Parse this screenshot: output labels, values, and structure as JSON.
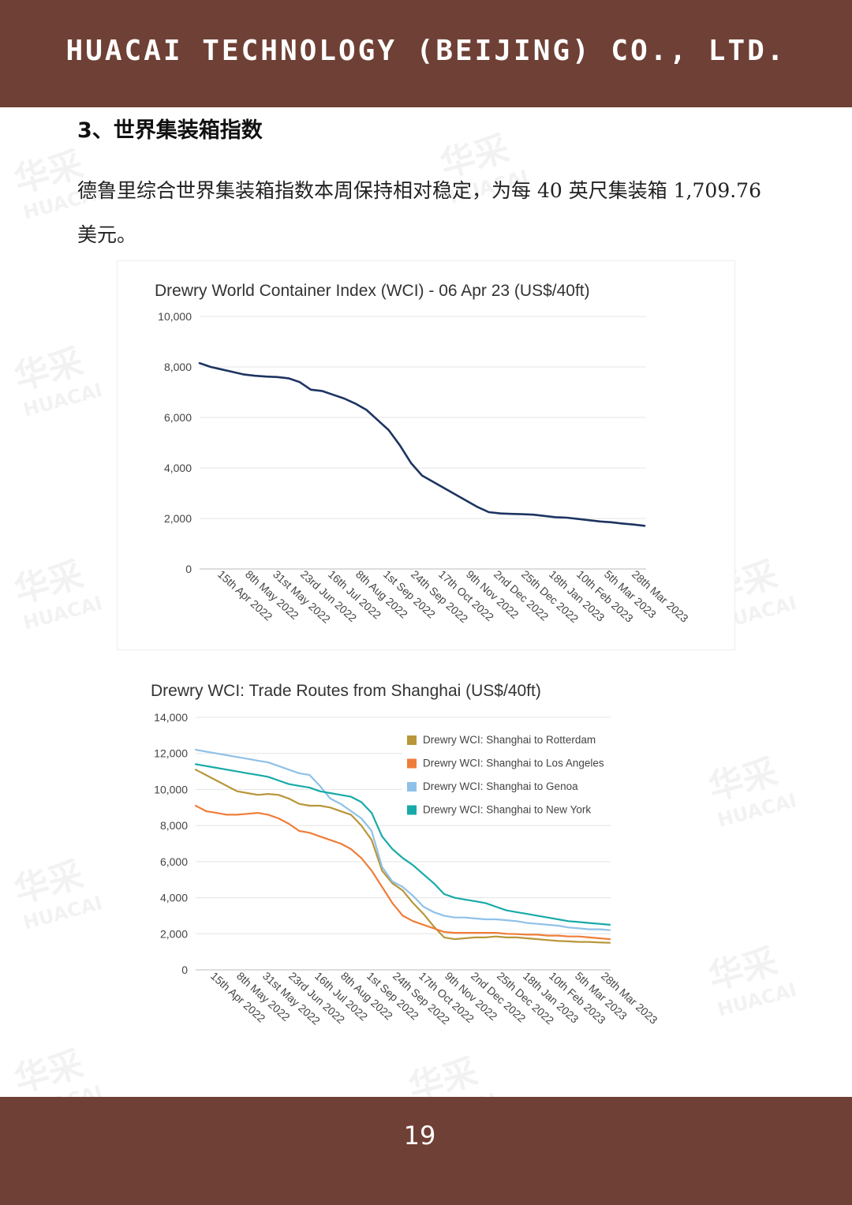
{
  "header": {
    "title": "HUACAI TECHNOLOGY (BEIJING) CO., LTD."
  },
  "section": {
    "heading": "3、世界集装箱指数",
    "paragraph": "德鲁里综合世界集装箱指数本周保持相对稳定，为每 40 英尺集装箱 1,709.76 美元。"
  },
  "watermark": {
    "text": "华采",
    "subtext": "HUACAI"
  },
  "footer": {
    "page_number": "19"
  },
  "colors": {
    "wci": "#1d3461",
    "rotterdam": "#b8963a",
    "los_angeles": "#ef7d3a",
    "genoa": "#8fc1e8",
    "new_york": "#17aaa8",
    "grid": "#e4e4e4",
    "header_bg": "#6f4035"
  },
  "chart_data": [
    {
      "type": "line",
      "title": "Drewry World Container Index (WCI) - 06 Apr 23 (US$/40ft)",
      "ylim": [
        0,
        10000
      ],
      "yticks": [
        "0",
        "2,000",
        "4,000",
        "6,000",
        "8,000",
        "10,000"
      ],
      "ytick_values": [
        0,
        2000,
        4000,
        6000,
        8000,
        10000
      ],
      "xticks": [
        "15th Apr 2022",
        "8th May 2022",
        "31st May 2022",
        "23rd Jun 2022",
        "16th Jul 2022",
        "8th Aug 2022",
        "1st Sep 2022",
        "24th Sep 2022",
        "17th Oct 2022",
        "9th Nov 2022",
        "2nd Dec 2022",
        "25th Dec 2022",
        "18th Jan 2023",
        "10th Feb 2023",
        "5th Mar 2023",
        "28th Mar 2023"
      ],
      "grid": true,
      "series": [
        {
          "values": [
            8150,
            8000,
            7900,
            7800,
            7700,
            7650,
            7620,
            7600,
            7550,
            7400,
            7100,
            7050,
            6900,
            6750,
            6550,
            6300,
            5900,
            5500,
            4900,
            4200,
            3700,
            3450,
            3200,
            2950,
            2700,
            2450,
            2250,
            2200,
            2180,
            2170,
            2150,
            2100,
            2050,
            2030,
            1980,
            1930,
            1880,
            1850,
            1800,
            1760,
            1710
          ]
        }
      ]
    },
    {
      "type": "line",
      "title": "Drewry WCI: Trade Routes from Shanghai (US$/40ft)",
      "ylim": [
        0,
        14000
      ],
      "yticks": [
        "0",
        "2,000",
        "4,000",
        "6,000",
        "8,000",
        "10,000",
        "12,000",
        "14,000"
      ],
      "ytick_values": [
        0,
        2000,
        4000,
        6000,
        8000,
        10000,
        12000,
        14000
      ],
      "xticks": [
        "15th Apr 2022",
        "8th May 2022",
        "31st May 2022",
        "23rd Jun 2022",
        "16th Jul 2022",
        "8th Aug 2022",
        "1st Sep 2022",
        "24th Sep 2022",
        "17th Oct 2022",
        "9th Nov 2022",
        "2nd Dec 2022",
        "25th Dec 2022",
        "18th Jan 2023",
        "10th Feb 2023",
        "5th Mar 2023",
        "28th Mar 2023"
      ],
      "grid": true,
      "legend_position": "top-right",
      "series": [
        {
          "name": "Drewry WCI: Shanghai to Rotterdam",
          "values": [
            11100,
            10800,
            10500,
            10200,
            9900,
            9800,
            9700,
            9750,
            9700,
            9500,
            9200,
            9100,
            9100,
            9000,
            8800,
            8600,
            8000,
            7200,
            5500,
            4800,
            4400,
            3700,
            3100,
            2400,
            1800,
            1700,
            1750,
            1800,
            1800,
            1850,
            1800,
            1800,
            1750,
            1700,
            1650,
            1600,
            1580,
            1550,
            1550,
            1520,
            1500
          ]
        },
        {
          "name": "Drewry WCI: Shanghai to Los Angeles",
          "values": [
            9100,
            8800,
            8700,
            8600,
            8600,
            8650,
            8700,
            8600,
            8400,
            8100,
            7700,
            7600,
            7400,
            7200,
            7000,
            6700,
            6200,
            5500,
            4600,
            3700,
            3000,
            2700,
            2500,
            2300,
            2100,
            2050,
            2050,
            2050,
            2050,
            2050,
            2000,
            1980,
            1950,
            1950,
            1900,
            1900,
            1850,
            1850,
            1800,
            1750,
            1700
          ]
        },
        {
          "name": "Drewry WCI: Shanghai to Genoa",
          "values": [
            12200,
            12100,
            12000,
            11900,
            11800,
            11700,
            11600,
            11500,
            11300,
            11100,
            10900,
            10800,
            10200,
            9500,
            9200,
            8800,
            8400,
            7700,
            5700,
            4900,
            4600,
            4100,
            3500,
            3200,
            3000,
            2900,
            2900,
            2850,
            2800,
            2800,
            2750,
            2700,
            2600,
            2550,
            2500,
            2450,
            2350,
            2300,
            2250,
            2250,
            2200
          ]
        },
        {
          "name": "Drewry WCI: Shanghai to New York",
          "values": [
            11400,
            11300,
            11200,
            11100,
            11000,
            10900,
            10800,
            10700,
            10500,
            10300,
            10200,
            10100,
            9900,
            9800,
            9700,
            9600,
            9300,
            8700,
            7400,
            6700,
            6200,
            5800,
            5300,
            4800,
            4200,
            4000,
            3900,
            3800,
            3700,
            3500,
            3300,
            3200,
            3100,
            3000,
            2900,
            2800,
            2700,
            2650,
            2600,
            2550,
            2500
          ]
        }
      ]
    }
  ]
}
